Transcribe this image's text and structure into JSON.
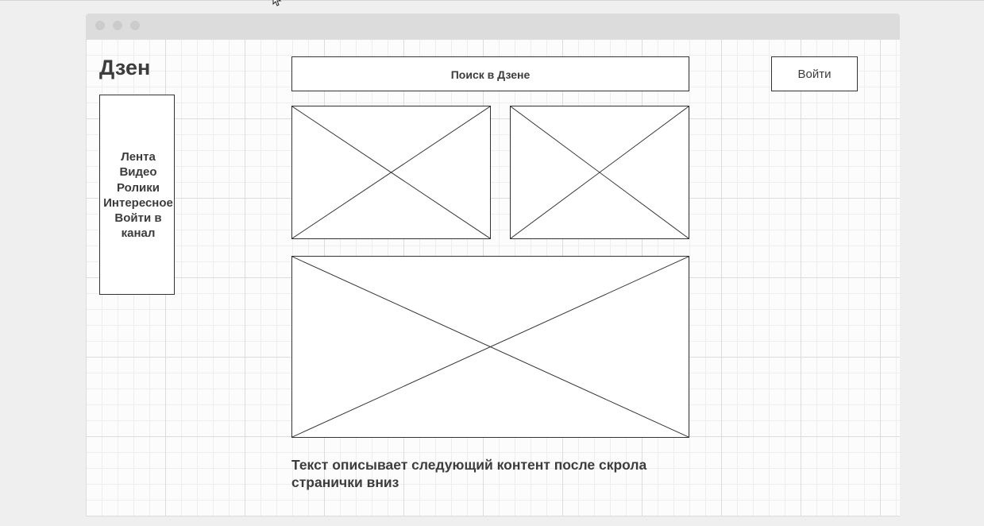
{
  "header": {
    "logo": "Дзен",
    "search_label": "Поиск в Дзене",
    "login_label": "Войти"
  },
  "sidebar": {
    "items": [
      {
        "label": "Лента"
      },
      {
        "label": "Видео"
      },
      {
        "label": "Ролики"
      },
      {
        "label": "Интересное"
      },
      {
        "label": "Войти в"
      },
      {
        "label": "канал"
      }
    ]
  },
  "main": {
    "caption_line1": "Текст описывает следующий контент после скрола",
    "caption_line2": "странички вниз"
  }
}
